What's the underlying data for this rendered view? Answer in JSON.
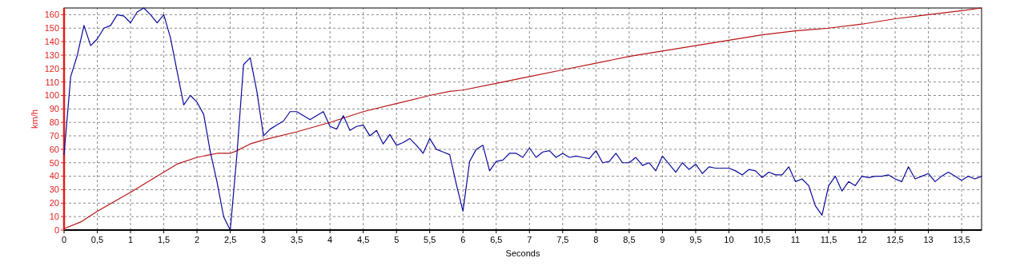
{
  "chart_data": {
    "type": "line",
    "xlabel": "Seconds",
    "ylabel": "km/h",
    "xlim": [
      0,
      13.8
    ],
    "ylim": [
      0,
      165
    ],
    "xticks": [
      0,
      {
        "value": 0.5,
        "label": "0,5"
      },
      1,
      {
        "value": 1.5,
        "label": "1,5"
      },
      2,
      {
        "value": 2.5,
        "label": "2,5"
      },
      3,
      {
        "value": 3.5,
        "label": "3,5"
      },
      4,
      {
        "value": 4.5,
        "label": "4,5"
      },
      5,
      {
        "value": 5.5,
        "label": "5,5"
      },
      6,
      {
        "value": 6.5,
        "label": "6,5"
      },
      7,
      {
        "value": 7.5,
        "label": "7,5"
      },
      8,
      {
        "value": 8.5,
        "label": "8,5"
      },
      9,
      {
        "value": 9.5,
        "label": "9,5"
      },
      10,
      {
        "value": 10.5,
        "label": "10,5"
      },
      11,
      {
        "value": 11.5,
        "label": "11,5"
      },
      12,
      {
        "value": 12.5,
        "label": "12,5"
      },
      13,
      {
        "value": 13.5,
        "label": "13,5"
      }
    ],
    "yticks": [
      0,
      10,
      20,
      30,
      40,
      50,
      60,
      70,
      80,
      90,
      100,
      110,
      120,
      130,
      140,
      150,
      160
    ],
    "grid": true,
    "line_style": "solid",
    "marker": "none",
    "series": [
      {
        "color": "#b81414",
        "x": [
          0,
          0.25,
          0.5,
          1,
          1.5,
          1.7,
          2,
          2.2,
          2.3,
          2.5,
          2.6,
          2.8,
          3,
          3.5,
          4,
          4.5,
          5,
          5.5,
          5.8,
          6,
          6.5,
          7,
          7.5,
          8,
          8.5,
          9,
          9.5,
          10,
          10.5,
          11,
          11.5,
          12,
          12.5,
          13,
          13.5,
          13.8
        ],
        "values": [
          1,
          6,
          14,
          28,
          43,
          49,
          54,
          56,
          57,
          57,
          59,
          64,
          67,
          73,
          80,
          88,
          94,
          100,
          103,
          104,
          109,
          114,
          119,
          124,
          129,
          133,
          137,
          141,
          145,
          148,
          150,
          153,
          157,
          160,
          163,
          165
        ]
      },
      {
        "color": "#0a0a9a",
        "x": [
          0,
          0.1,
          0.2,
          0.3,
          0.4,
          0.5,
          0.6,
          0.7,
          0.8,
          0.9,
          1,
          1.1,
          1.2,
          1.3,
          1.4,
          1.5,
          1.6,
          1.7,
          1.8,
          1.9,
          2,
          2.1,
          2.2,
          2.3,
          2.4,
          2.5,
          2.6,
          2.7,
          2.8,
          2.9,
          3,
          3.1,
          3.2,
          3.3,
          3.4,
          3.5,
          3.6,
          3.7,
          3.8,
          3.9,
          4,
          4.1,
          4.2,
          4.3,
          4.4,
          4.5,
          4.6,
          4.7,
          4.8,
          4.9,
          5,
          5.1,
          5.2,
          5.3,
          5.4,
          5.5,
          5.6,
          5.7,
          5.8,
          5.9,
          6,
          6.1,
          6.2,
          6.3,
          6.4,
          6.5,
          6.6,
          6.7,
          6.8,
          6.9,
          7,
          7.1,
          7.2,
          7.3,
          7.4,
          7.5,
          7.6,
          7.7,
          7.8,
          7.9,
          8,
          8.1,
          8.2,
          8.3,
          8.4,
          8.5,
          8.6,
          8.7,
          8.8,
          8.9,
          9,
          9.1,
          9.2,
          9.3,
          9.4,
          9.5,
          9.6,
          9.7,
          9.8,
          9.9,
          10,
          10.1,
          10.2,
          10.3,
          10.4,
          10.5,
          10.6,
          10.7,
          10.8,
          10.9,
          11,
          11.1,
          11.2,
          11.3,
          11.4,
          11.5,
          11.6,
          11.7,
          11.8,
          11.9,
          12,
          12.1,
          12.2,
          12.3,
          12.4,
          12.5,
          12.6,
          12.7,
          12.8,
          12.9,
          13,
          13.1,
          13.2,
          13.3,
          13.4,
          13.5,
          13.6,
          13.7,
          13.8
        ],
        "values": [
          56,
          114,
          130,
          152,
          137,
          142,
          150,
          152,
          160,
          159,
          154,
          162,
          165,
          160,
          154,
          160,
          143,
          118,
          93,
          100,
          95,
          86,
          58,
          36,
          10,
          0,
          56,
          123,
          128,
          103,
          70,
          75,
          78,
          81,
          88,
          88,
          85,
          82,
          85,
          88,
          77,
          75,
          85,
          74,
          77,
          78,
          70,
          74,
          64,
          71,
          63,
          65,
          68,
          63,
          57,
          68,
          60,
          58,
          56,
          34,
          14,
          51,
          60,
          63,
          44,
          51,
          52,
          57,
          57,
          54,
          61,
          54,
          58,
          59,
          54,
          57,
          54,
          55,
          54,
          53,
          59,
          50,
          51,
          57,
          50,
          50,
          54,
          48,
          50,
          44,
          55,
          49,
          43,
          50,
          45,
          49,
          42,
          47,
          46,
          46,
          46,
          44,
          41,
          45,
          44,
          39,
          43,
          41,
          41,
          47,
          36,
          38,
          33,
          18,
          11,
          33,
          40,
          29,
          36,
          33,
          40,
          39,
          40,
          40,
          41,
          38,
          36,
          47,
          38,
          40,
          42,
          36,
          40,
          43,
          40,
          37,
          40,
          38,
          40
        ]
      }
    ]
  }
}
